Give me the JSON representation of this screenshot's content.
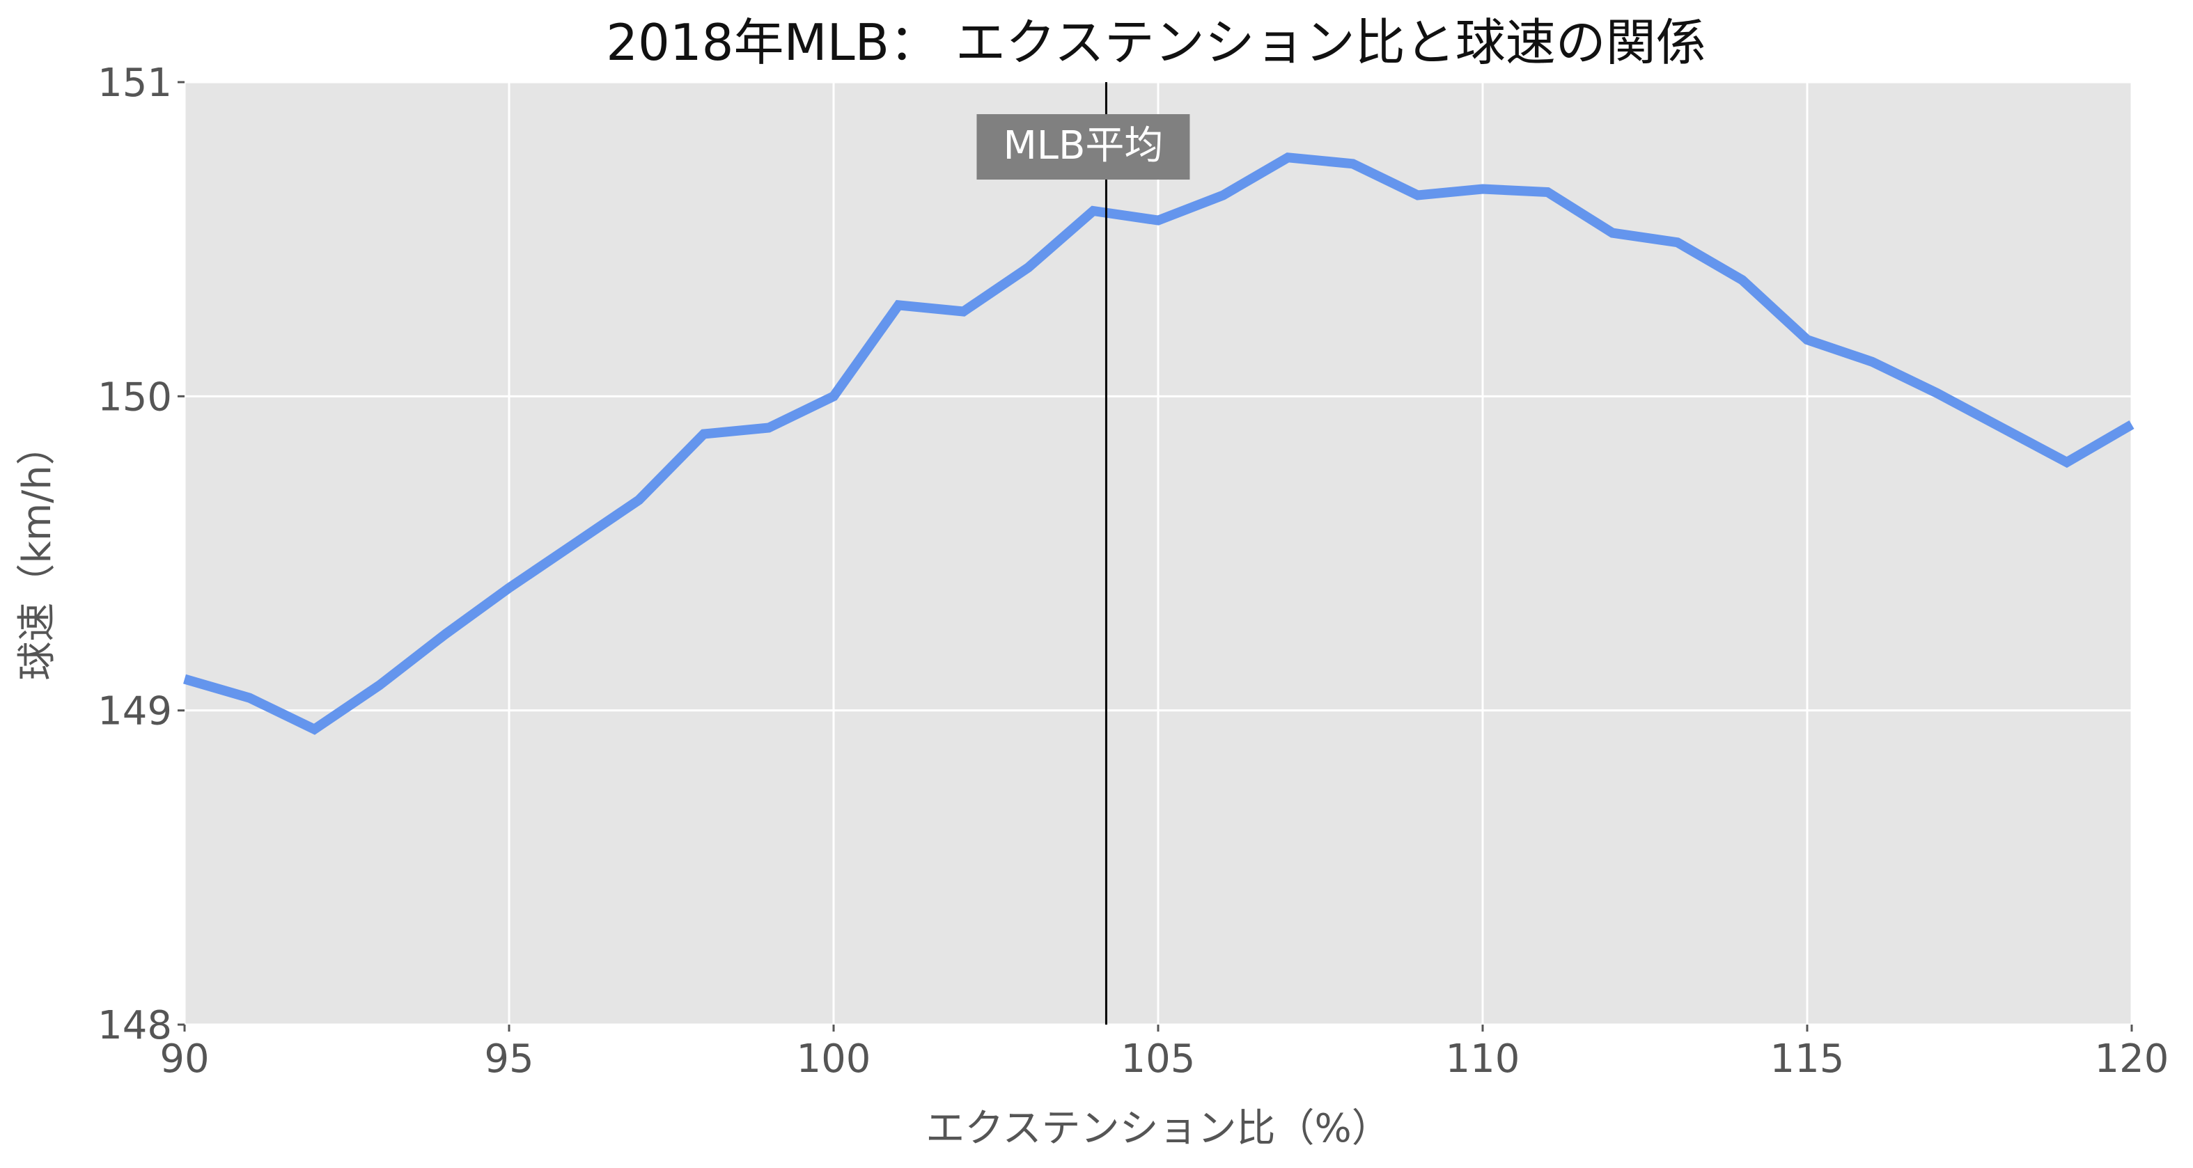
{
  "chart_data": {
    "type": "line",
    "title": "2018年MLB： エクステンション比と球速の関係",
    "xlabel": "エクステンション比（%）",
    "ylabel": "球速（km/h）",
    "xlim": [
      90,
      120
    ],
    "ylim": [
      148,
      151
    ],
    "xticks": [
      90,
      95,
      100,
      105,
      110,
      115,
      120
    ],
    "yticks": [
      148,
      149,
      150,
      151
    ],
    "grid": true,
    "series": [
      {
        "color": "#6495ED",
        "x": [
          90,
          91,
          92,
          93,
          94,
          95,
          96,
          97,
          98,
          99,
          100,
          101,
          102,
          103,
          104,
          105,
          106,
          107,
          108,
          109,
          110,
          111,
          112,
          113,
          114,
          115,
          116,
          117,
          118,
          119,
          120
        ],
        "y": [
          149.1,
          149.04,
          148.94,
          149.08,
          149.24,
          149.39,
          149.53,
          149.67,
          149.88,
          149.9,
          150.0,
          150.29,
          150.27,
          150.41,
          150.59,
          150.56,
          150.64,
          150.76,
          150.74,
          150.64,
          150.66,
          150.65,
          150.52,
          150.49,
          150.37,
          150.18,
          150.11,
          150.01,
          149.9,
          149.79,
          149.91
        ]
      }
    ],
    "reference_line": {
      "x": 104.2,
      "label": "MLB平均",
      "color": "#000000"
    },
    "colors": {
      "background": "#E5E5E5",
      "grid": "#FFFFFF",
      "annotation_box": "#808080"
    }
  }
}
